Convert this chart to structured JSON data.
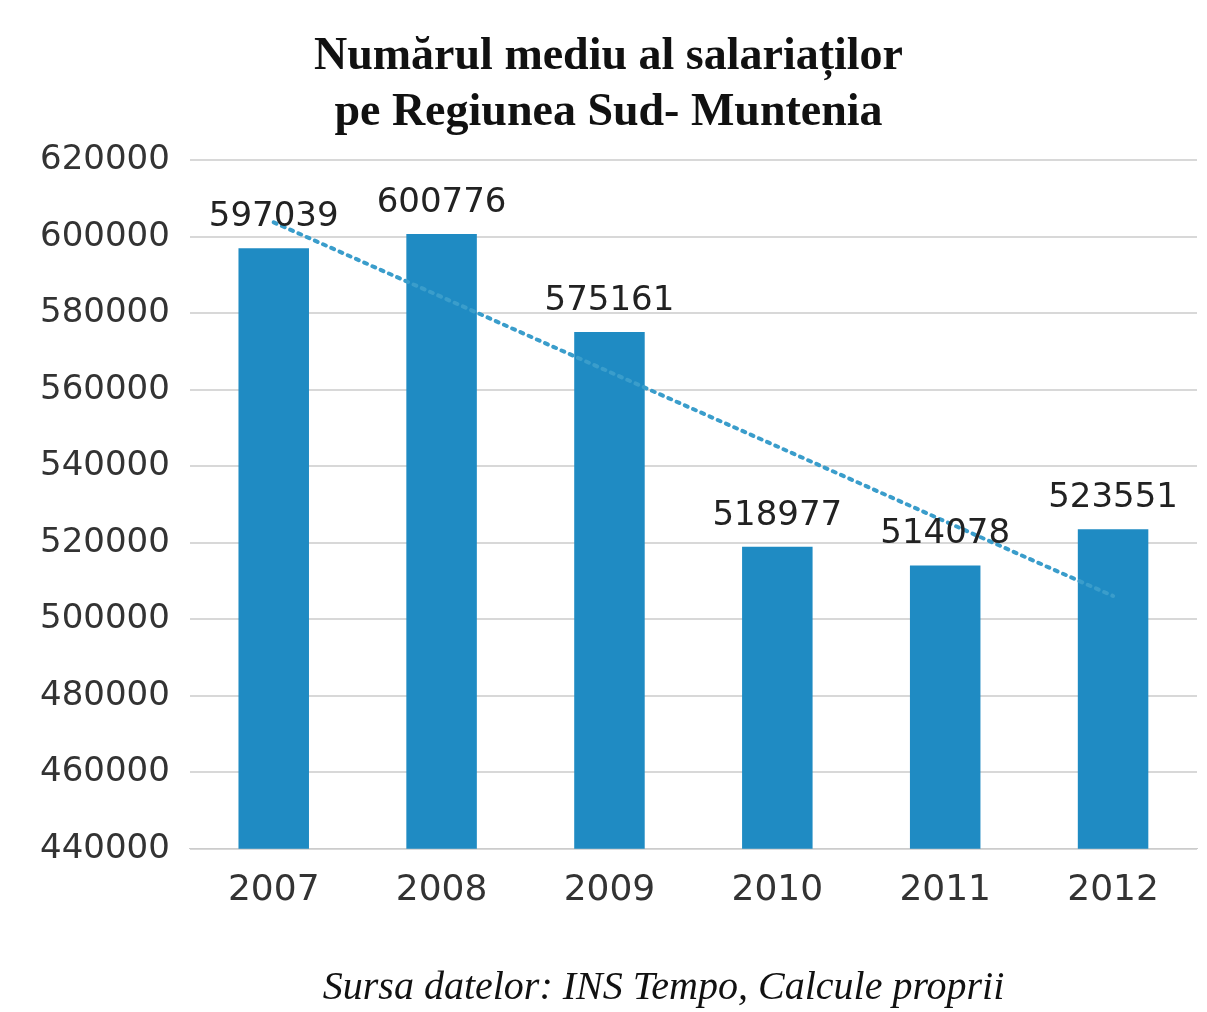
{
  "chart_data": {
    "type": "bar",
    "title": "Numărul mediu al salariaților pe Regiunea Sud- Muntenia",
    "categories": [
      "2007",
      "2008",
      "2009",
      "2010",
      "2011",
      "2012"
    ],
    "series": [
      {
        "color": "#1f8bc3",
        "values": [
          597039,
          600776,
          575161,
          518977,
          514078,
          523551
        ],
        "value_labels": [
          "597039",
          "600776",
          "575161",
          "518977",
          "514078",
          "523551"
        ]
      },
      {
        "type": "line",
        "color": "#3a9dcb",
        "line_style": "dotted",
        "marker": "none",
        "values": [
          603800,
          584300,
          564700,
          545200,
          525600,
          506100
        ]
      }
    ],
    "ylim": [
      440000,
      620000
    ],
    "yticks": [
      440000,
      460000,
      480000,
      500000,
      520000,
      540000,
      560000,
      580000,
      600000,
      620000
    ],
    "grid": "y",
    "legend": false,
    "annotations": [
      "Sursa datelor: INS Tempo, Calcule proprii"
    ]
  }
}
